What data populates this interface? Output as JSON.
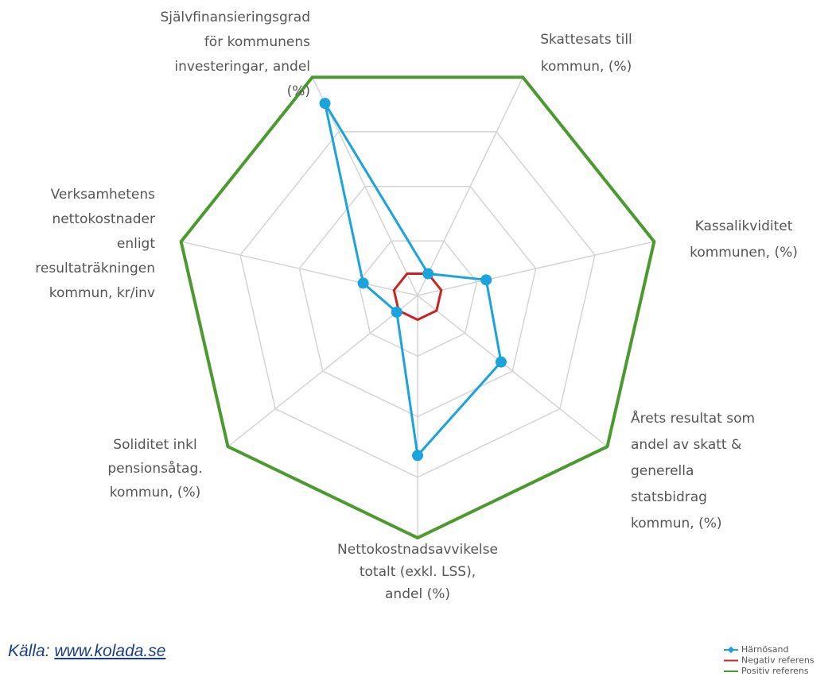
{
  "chart_data": {
    "type": "radar",
    "categories": [
      [
        "Skattesats till",
        "kommun, (%)"
      ],
      [
        "Kassalikviditet",
        "kommunen, (%)"
      ],
      [
        "Årets resultat som",
        "andel av skatt &",
        "generella",
        "statsbidrag",
        "kommun, (%)"
      ],
      [
        "Nettokostnadsavvikelse",
        "totalt (exkl. LSS),",
        "andel (%)"
      ],
      [
        "Soliditet inkl",
        "pensionsåtag.",
        "kommun, (%)"
      ],
      [
        "Verksamhetens",
        "nettokostnader",
        "enligt",
        "resultaträkningen",
        "kommun, kr/inv"
      ],
      [
        "Självfinansieringsgrad",
        "för kommunens",
        "investeringar, andel",
        "(%)"
      ]
    ],
    "series": [
      {
        "name": "Härnösand",
        "color": "#1aa3dd",
        "values": [
          10,
          29,
          44,
          66,
          11,
          23,
          88
        ]
      },
      {
        "name": "Negativ referens",
        "color": "#cc2222",
        "values": [
          10,
          10,
          10,
          10,
          10,
          10,
          10
        ]
      },
      {
        "name": "Positiv referens",
        "color": "#4a9a2e",
        "values": [
          100,
          100,
          100,
          100,
          100,
          100,
          100
        ]
      }
    ],
    "rlim": [
      0,
      100
    ],
    "rticks": [
      25,
      50,
      75
    ],
    "grid": true,
    "source": {
      "prefix": "Källa:",
      "link": "www.kolada.se"
    }
  }
}
